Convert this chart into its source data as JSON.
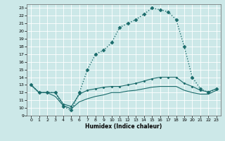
{
  "title": "",
  "xlabel": "Humidex (Indice chaleur)",
  "ylabel": "",
  "bg_color": "#cce8e8",
  "line_color": "#1a6b6b",
  "xlim": [
    -0.5,
    23.5
  ],
  "ylim": [
    9,
    23.5
  ],
  "xticks": [
    0,
    1,
    2,
    3,
    4,
    5,
    6,
    7,
    8,
    9,
    10,
    11,
    12,
    13,
    14,
    15,
    16,
    17,
    18,
    19,
    20,
    21,
    22,
    23
  ],
  "yticks": [
    9,
    10,
    11,
    12,
    13,
    14,
    15,
    16,
    17,
    18,
    19,
    20,
    21,
    22,
    23
  ],
  "series": [
    {
      "x": [
        0,
        1,
        2,
        3,
        4,
        5,
        6,
        7,
        8,
        9,
        10,
        11,
        12,
        13,
        14,
        15,
        16,
        17,
        18,
        19,
        20,
        21,
        22,
        23
      ],
      "y": [
        13,
        12,
        12,
        12,
        10.2,
        9.7,
        12,
        15,
        17,
        17.5,
        18.5,
        20.5,
        21.0,
        21.5,
        22.2,
        23.0,
        22.8,
        22.5,
        21.5,
        18.0,
        14.0,
        12.5,
        12,
        12.5
      ],
      "style": "dotted",
      "marker": "D",
      "markersize": 2.5,
      "linewidth": 1.0
    },
    {
      "x": [
        0,
        1,
        2,
        3,
        4,
        5,
        6,
        7,
        8,
        9,
        10,
        11,
        12,
        13,
        14,
        15,
        16,
        17,
        18,
        19,
        20,
        21,
        22,
        23
      ],
      "y": [
        13,
        12,
        12,
        12,
        10.5,
        10.2,
        11.8,
        12.3,
        12.5,
        12.7,
        12.8,
        12.8,
        13.0,
        13.2,
        13.5,
        13.8,
        14.0,
        14.0,
        14.0,
        13.2,
        12.8,
        12.3,
        12.1,
        12.5
      ],
      "style": "solid",
      "marker": "D",
      "markersize": 1.5,
      "linewidth": 0.8
    },
    {
      "x": [
        0,
        1,
        2,
        3,
        4,
        5,
        6,
        7,
        8,
        9,
        10,
        11,
        12,
        13,
        14,
        15,
        16,
        17,
        18,
        19,
        20,
        21,
        22,
        23
      ],
      "y": [
        13,
        12,
        12,
        11.5,
        10.3,
        9.9,
        10.8,
        11.2,
        11.5,
        11.7,
        12.0,
        12.0,
        12.2,
        12.3,
        12.5,
        12.7,
        12.8,
        12.8,
        12.8,
        12.3,
        12.0,
        11.8,
        11.8,
        12.3
      ],
      "style": "solid",
      "marker": null,
      "markersize": 0,
      "linewidth": 0.8
    }
  ]
}
